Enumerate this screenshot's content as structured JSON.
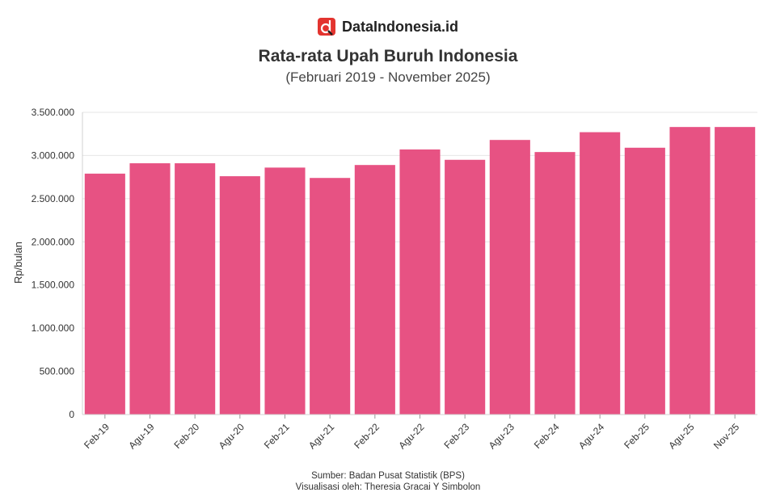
{
  "brand": {
    "name": "DataIndonesia.id",
    "logo_icon": "dataindonesia-logo-icon",
    "logo_letter": "d"
  },
  "chart_data": {
    "type": "bar",
    "title": "Rata-rata Upah Buruh Indonesia",
    "subtitle": "(Februari 2019 - November 2025)",
    "xlabel": "",
    "ylabel": "Rp/bulan",
    "categories": [
      "Feb-19",
      "Agu-19",
      "Feb-20",
      "Agu-20",
      "Feb-21",
      "Agu-21",
      "Feb-22",
      "Agu-22",
      "Feb-23",
      "Agu-23",
      "Feb-24",
      "Agu-24",
      "Feb-25",
      "Agu-25",
      "Nov-25"
    ],
    "values": [
      2790000,
      2910000,
      2910000,
      2760000,
      2860000,
      2740000,
      2890000,
      3070000,
      2950000,
      3180000,
      3040000,
      3270000,
      3090000,
      3330000,
      3330000
    ],
    "ylim": [
      0,
      3500000
    ],
    "yticks": [
      0,
      500000,
      1000000,
      1500000,
      2000000,
      2500000,
      3000000,
      3500000
    ],
    "ytick_labels": [
      "0",
      "500.000",
      "1.000.000",
      "1.500.000",
      "2.000.000",
      "2.500.000",
      "3.000.000",
      "3.500.000"
    ],
    "grid": true,
    "bar_color": "#E75283"
  },
  "footer": {
    "source": "Sumber: Badan Pusat Statistik (BPS)",
    "credit": "Visualisasi oleh: Theresia Gracai Y Simbolon"
  }
}
